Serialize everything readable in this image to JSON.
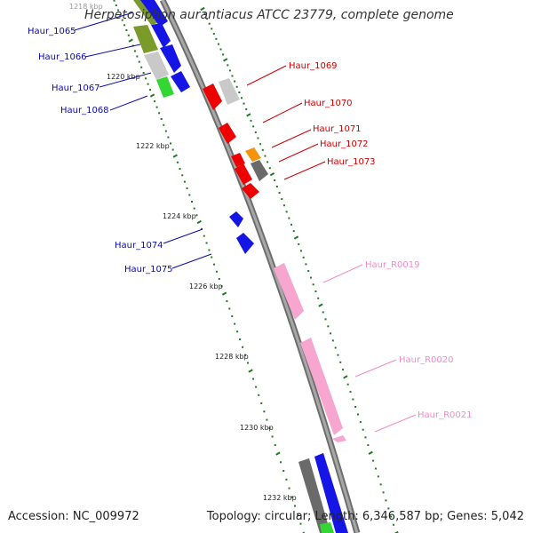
{
  "title": "Herpetosiphon aurantiacus ATCC 23779, complete genome",
  "footer": {
    "accession": "Accession: NC_009972",
    "summary": "Topology: circular; Length: 6,346,587 bp; Genes: 5,042"
  },
  "colors": {
    "backbone": "#8c8c8c",
    "tick": "#1f7a1f",
    "forward_label": "#0a0aa8",
    "reverse_label": "#d10000",
    "rna_label": "#f08cc8",
    "gene_blue": "#1515e6",
    "gene_red": "#ee0000",
    "gene_gray": "#bdbdbd",
    "gene_dark": "#6a6a6a",
    "gene_green": "#34d634",
    "gene_olive": "#7a9a2a",
    "gene_orange": "#f5930a",
    "gene_pink": "#f7a6cf"
  },
  "scale": {
    "unit": "kbp",
    "ticks": [
      {
        "label": "1218 kbp"
      },
      {
        "label": "1220 kbp"
      },
      {
        "label": "1222 kbp"
      },
      {
        "label": "1224 kbp"
      },
      {
        "label": "1226 kbp"
      },
      {
        "label": "1228 kbp"
      },
      {
        "label": "1230 kbp"
      },
      {
        "label": "1232 kbp"
      }
    ]
  },
  "features": [
    {
      "label": "Haur_1065",
      "strand": "forward",
      "type": "CDS"
    },
    {
      "label": "Haur_1066",
      "strand": "forward",
      "type": "CDS"
    },
    {
      "label": "Haur_1067",
      "strand": "forward",
      "type": "CDS"
    },
    {
      "label": "Haur_1068",
      "strand": "forward",
      "type": "CDS"
    },
    {
      "label": "Haur_1069",
      "strand": "reverse",
      "type": "CDS"
    },
    {
      "label": "Haur_1070",
      "strand": "reverse",
      "type": "CDS"
    },
    {
      "label": "Haur_1071",
      "strand": "reverse",
      "type": "CDS"
    },
    {
      "label": "Haur_1072",
      "strand": "reverse",
      "type": "CDS"
    },
    {
      "label": "Haur_1073",
      "strand": "reverse",
      "type": "CDS"
    },
    {
      "label": "Haur_1074",
      "strand": "forward",
      "type": "CDS"
    },
    {
      "label": "Haur_1075",
      "strand": "forward",
      "type": "CDS"
    },
    {
      "label": "Haur_R0019",
      "strand": "reverse",
      "type": "RNA"
    },
    {
      "label": "Haur_R0020",
      "strand": "reverse",
      "type": "RNA"
    },
    {
      "label": "Haur_R0021",
      "strand": "reverse",
      "type": "RNA"
    }
  ]
}
